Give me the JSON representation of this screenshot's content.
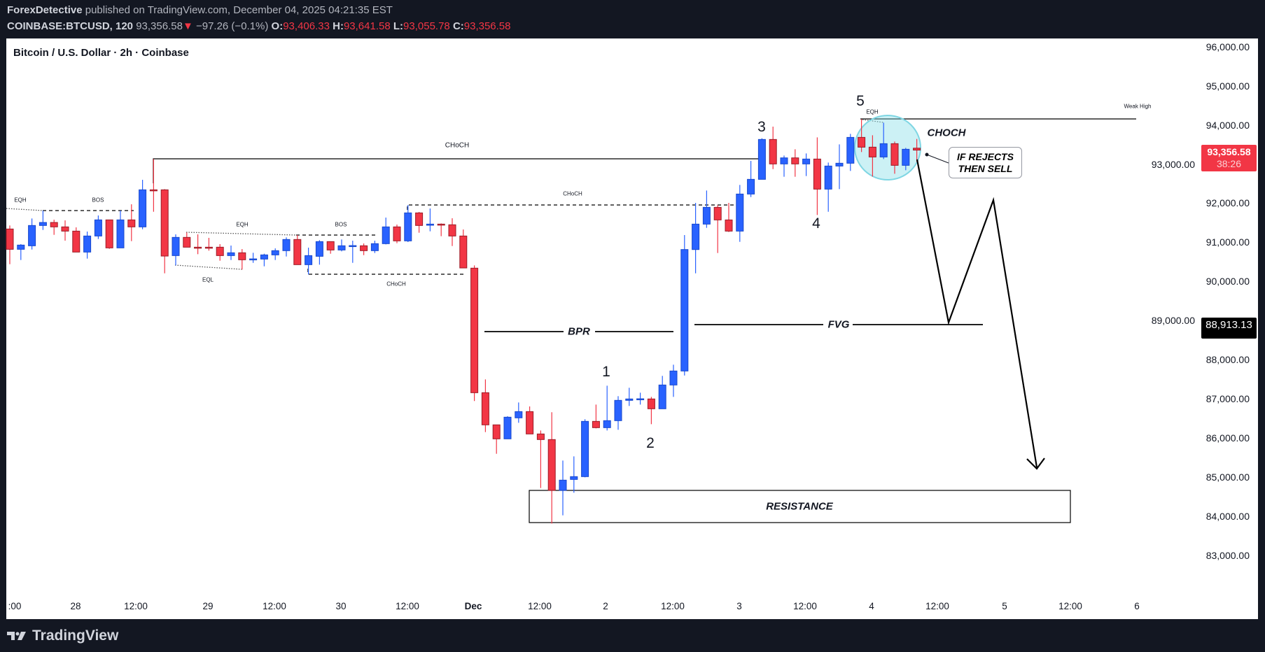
{
  "header": {
    "author": "ForexDetective",
    "published_text": "published on TradingView.com, December 04, 2025 04:21:35 EST",
    "symbol": "COINBASE:BTCUSD, 120",
    "last_price": "93,356.58",
    "change_arrow": "▼",
    "change": "−97.26 (−0.1%)",
    "o_label": "O:",
    "o": "93,406.33",
    "h_label": "H:",
    "h": "93,641.58",
    "l_label": "L:",
    "l": "93,055.78",
    "c_label": "C:",
    "c": "93,356.58"
  },
  "chart_title": "Bitcoin / U.S. Dollar · 2h · Coinbase",
  "price_tag": {
    "price": "93,356.58",
    "countdown": "38:26",
    "color": "#f23645"
  },
  "level_tag": {
    "price": "88,913.13",
    "color": "#000000"
  },
  "annotations": {
    "eqh1": "EQH",
    "bos1": "BOS",
    "choch_main": "CHoCH",
    "eqh2": "EQH",
    "bos2": "BOS",
    "eql": "EQL",
    "choch_low": "CHoCH",
    "choch_high": "CHoCH",
    "eqh3": "EQH",
    "weak_high": "Weak High",
    "choch_right": "CHOCH",
    "callout_line1": "IF REJECTS",
    "callout_line2": "THEN SELL",
    "bpr": "BPR",
    "fvg": "FVG",
    "resistance": "RESISTANCE",
    "w1": "1",
    "w2": "2",
    "w3": "3",
    "w4": "4",
    "w5": "5"
  },
  "time_axis": {
    "labels": [
      ":00",
      "28",
      "12:00",
      "29",
      "12:00",
      "30",
      "12:00",
      "Dec",
      "12:00",
      "2",
      "12:00",
      "3",
      "12:00",
      "4",
      "12:00",
      "5",
      "12:00",
      "6"
    ]
  },
  "footer": {
    "brand": "TradingView"
  },
  "chart_data": {
    "type": "candlestick",
    "title": "Bitcoin / U.S. Dollar · 2h · Coinbase",
    "interval": "2h",
    "ylim": [
      82500,
      96200
    ],
    "yticks": [
      96000,
      95000,
      94000,
      93000,
      92000,
      91000,
      90000,
      89000,
      88000,
      87000,
      86000,
      85000,
      84000,
      83000
    ],
    "ytick_labels": [
      "96,000.00",
      "95,000.00",
      "94,000.00",
      "93,000.00",
      "92,000.00",
      "91,000.00",
      "90,000.00",
      "89,000.00",
      "88,000.00",
      "87,000.00",
      "86,000.00",
      "85,000.00",
      "84,000.00",
      "83,000.00"
    ],
    "up_color": "#2962ff",
    "down_color": "#f23645",
    "ohlc_fields": [
      "open",
      "high",
      "low",
      "close"
    ],
    "candles": [
      [
        91339,
        91429,
        90439,
        90820
      ],
      [
        90820,
        90952,
        90546,
        90928
      ],
      [
        90910,
        91608,
        90814,
        91429
      ],
      [
        91429,
        91810,
        91315,
        91506
      ],
      [
        91506,
        91578,
        91190,
        91393
      ],
      [
        91393,
        91560,
        91041,
        91285
      ],
      [
        91285,
        91381,
        90749,
        90749
      ],
      [
        90749,
        91274,
        90582,
        91160
      ],
      [
        91160,
        91685,
        91083,
        91572
      ],
      [
        91572,
        91572,
        90832,
        90856
      ],
      [
        90856,
        91810,
        90856,
        91572
      ],
      [
        91572,
        91971,
        91029,
        91393
      ],
      [
        91393,
        92597,
        91333,
        92341
      ],
      [
        92341,
        93128,
        91780,
        92335
      ],
      [
        92341,
        92359,
        90206,
        90647
      ],
      [
        90659,
        91202,
        90409,
        91125
      ],
      [
        91125,
        91250,
        90874,
        90874
      ],
      [
        90874,
        91202,
        90695,
        90870
      ],
      [
        90874,
        91113,
        90785,
        90870
      ],
      [
        90874,
        90952,
        90528,
        90659
      ],
      [
        90659,
        90916,
        90546,
        90731
      ],
      [
        90731,
        90826,
        90302,
        90552
      ],
      [
        90570,
        90731,
        90474,
        90575
      ],
      [
        90570,
        90707,
        90385,
        90677
      ],
      [
        90677,
        90844,
        90546,
        90785
      ],
      [
        90785,
        91125,
        90636,
        91071
      ],
      [
        91071,
        91184,
        90427,
        90427
      ],
      [
        90427,
        90862,
        90176,
        90659
      ],
      [
        90641,
        91053,
        90427,
        91017
      ],
      [
        91017,
        91017,
        90707,
        90802
      ],
      [
        90802,
        91071,
        90767,
        90910
      ],
      [
        90910,
        91041,
        90474,
        90915
      ],
      [
        90910,
        90970,
        90671,
        90785
      ],
      [
        90785,
        91041,
        90725,
        90964
      ],
      [
        90964,
        91631,
        90946,
        91393
      ],
      [
        91393,
        91452,
        90976,
        91035
      ],
      [
        91035,
        91953,
        91005,
        91751
      ],
      [
        91751,
        91775,
        91244,
        91429
      ],
      [
        91435,
        91864,
        91280,
        91464
      ],
      [
        91464,
        91482,
        91155,
        91447
      ],
      [
        91447,
        91614,
        90904,
        91160
      ],
      [
        91160,
        91327,
        90343,
        90343
      ],
      [
        90338,
        90409,
        86939,
        87153
      ],
      [
        87153,
        87493,
        86146,
        86331
      ],
      [
        86331,
        86331,
        85591,
        85973
      ],
      [
        85973,
        86551,
        85973,
        86527
      ],
      [
        86510,
        86903,
        86384,
        86670
      ],
      [
        86670,
        86802,
        86098,
        86098
      ],
      [
        86098,
        86187,
        84715,
        85955
      ],
      [
        85955,
        86653,
        83808,
        84655
      ],
      [
        84655,
        85418,
        84017,
        84917
      ],
      [
        84935,
        85525,
        84595,
        85007
      ],
      [
        85007,
        86474,
        84989,
        86420
      ],
      [
        86420,
        86849,
        86241,
        86259
      ],
      [
        86259,
        87332,
        86187,
        86438
      ],
      [
        86438,
        87064,
        86205,
        86957
      ],
      [
        86957,
        87279,
        86814,
        86993
      ],
      [
        86993,
        87153,
        86849,
        86998
      ],
      [
        86993,
        87046,
        86348,
        86742
      ],
      [
        86742,
        87583,
        86742,
        87350
      ],
      [
        87350,
        87869,
        87046,
        87708
      ],
      [
        87708,
        91184,
        87594,
        90814
      ],
      [
        90814,
        92007,
        90206,
        91464
      ],
      [
        91464,
        92323,
        91369,
        91893
      ],
      [
        91893,
        91947,
        90725,
        91571
      ],
      [
        91571,
        92007,
        91262,
        91285
      ],
      [
        91285,
        92466,
        91011,
        92233
      ],
      [
        92233,
        93080,
        92156,
        92609
      ],
      [
        92609,
        93659,
        92609,
        93629
      ],
      [
        93629,
        93957,
        92871,
        93003
      ],
      [
        93003,
        93217,
        92675,
        93158
      ],
      [
        93158,
        93378,
        92675,
        93003
      ],
      [
        93003,
        93271,
        92693,
        93128
      ],
      [
        93128,
        93682,
        91697,
        92359
      ],
      [
        92359,
        93038,
        91780,
        92949
      ],
      [
        92949,
        93503,
        92359,
        93021
      ],
      [
        93021,
        93772,
        92824,
        93682
      ],
      [
        93682,
        94147,
        93307,
        93432
      ],
      [
        93432,
        93736,
        92681,
        93181
      ],
      [
        93181,
        94058,
        93128,
        93521
      ],
      [
        93521,
        93575,
        92752,
        92967
      ],
      [
        92967,
        93414,
        92842,
        93378
      ],
      [
        93406.33,
        93641.58,
        93055.78,
        93356.58
      ]
    ]
  }
}
